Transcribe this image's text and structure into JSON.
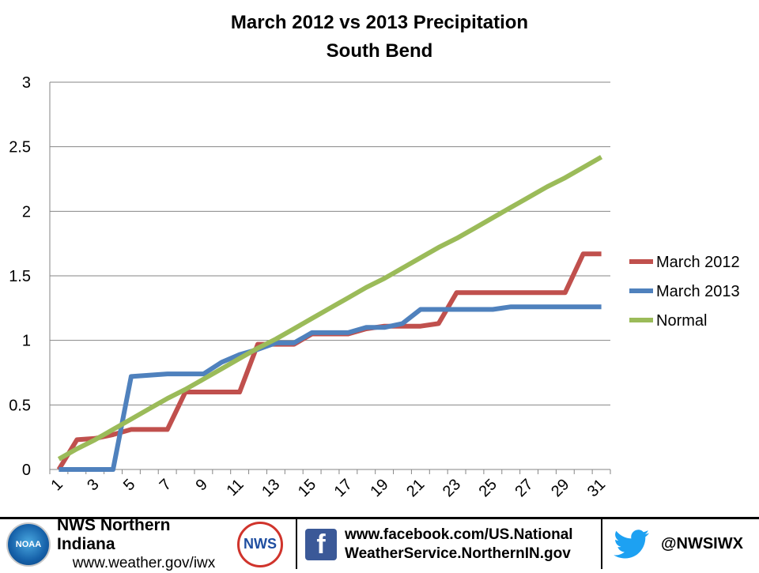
{
  "chart_data": {
    "type": "line",
    "title": "March 2012 vs 2013 Precipitation",
    "subtitle": "South Bend",
    "xlabel": "",
    "ylabel": "",
    "ylim": [
      0,
      3
    ],
    "yticks": [
      "0",
      "0.5",
      "1",
      "1.5",
      "2",
      "2.5",
      "3"
    ],
    "x": [
      1,
      2,
      3,
      4,
      5,
      6,
      7,
      8,
      9,
      10,
      11,
      12,
      13,
      14,
      15,
      16,
      17,
      18,
      19,
      20,
      21,
      22,
      23,
      24,
      25,
      26,
      27,
      28,
      29,
      30,
      31
    ],
    "xtick_labels": [
      "1",
      "3",
      "5",
      "7",
      "9",
      "11",
      "13",
      "15",
      "17",
      "19",
      "21",
      "23",
      "25",
      "27",
      "29",
      "31"
    ],
    "grid": "horizontal",
    "legend_position": "right",
    "series": [
      {
        "name": "March 2012",
        "color": "#C0504D",
        "values": [
          0,
          0.23,
          0.24,
          0.27,
          0.31,
          0.31,
          0.31,
          0.6,
          0.6,
          0.6,
          0.6,
          0.97,
          0.97,
          0.97,
          1.05,
          1.05,
          1.05,
          1.09,
          1.11,
          1.11,
          1.11,
          1.13,
          1.37,
          1.37,
          1.37,
          1.37,
          1.37,
          1.37,
          1.37,
          1.67,
          1.67
        ]
      },
      {
        "name": "March 2013",
        "color": "#4F81BD",
        "values": [
          0,
          0,
          0,
          0,
          0.72,
          0.73,
          0.74,
          0.74,
          0.74,
          0.83,
          0.89,
          0.93,
          0.98,
          0.98,
          1.06,
          1.06,
          1.06,
          1.1,
          1.1,
          1.13,
          1.24,
          1.24,
          1.24,
          1.24,
          1.24,
          1.26,
          1.26,
          1.26,
          1.26,
          1.26,
          1.26
        ]
      },
      {
        "name": "Normal",
        "color": "#9BBB59",
        "values": [
          0.08,
          0.16,
          0.23,
          0.31,
          0.39,
          0.47,
          0.55,
          0.62,
          0.7,
          0.78,
          0.86,
          0.94,
          1.01,
          1.09,
          1.17,
          1.25,
          1.33,
          1.41,
          1.48,
          1.56,
          1.64,
          1.72,
          1.79,
          1.87,
          1.95,
          2.03,
          2.11,
          2.19,
          2.26,
          2.34,
          2.42
        ]
      }
    ]
  },
  "footer": {
    "nws_name": "NWS Northern Indiana",
    "nws_url": "www.weather.gov/iwx",
    "noaa_logo_text": "NOAA",
    "nws_logo_text": "NWS",
    "facebook_line1": "www.facebook.com/US.National",
    "facebook_line2": "WeatherService.NorthernIN.gov",
    "facebook_icon_letter": "f",
    "twitter_handle": "@NWSIWX",
    "icons": [
      "noaa-logo",
      "nws-logo",
      "facebook-icon",
      "twitter-icon"
    ]
  }
}
